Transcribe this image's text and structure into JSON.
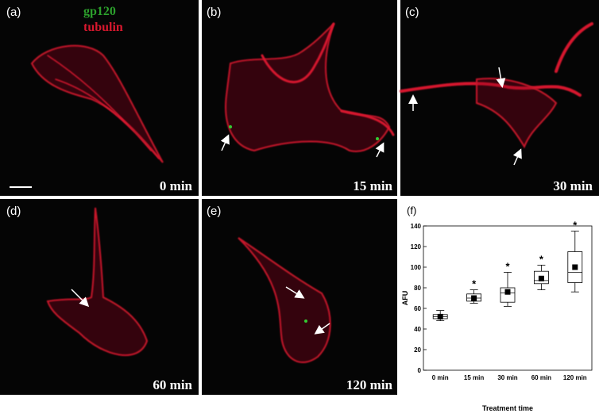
{
  "panels": [
    {
      "label": "(a)",
      "time": "0 min"
    },
    {
      "label": "(b)",
      "time": "15 min"
    },
    {
      "label": "(c)",
      "time": "30 min"
    },
    {
      "label": "(d)",
      "time": "60 min"
    },
    {
      "label": "(e)",
      "time": "120 min"
    }
  ],
  "legend": {
    "green": "gp120",
    "red": "tubulin"
  },
  "chart_data": {
    "type": "box",
    "panel_label": "(f)",
    "x_label": "Treatment time",
    "y_label": "AFU",
    "categories": [
      "0 min",
      "15 min",
      "30 min",
      "60 min",
      "120 min"
    ],
    "boxes": [
      {
        "min": 48,
        "q1": 50,
        "median": 52,
        "q3": 54,
        "max": 58,
        "mean": 52
      },
      {
        "min": 65,
        "q1": 67,
        "median": 70,
        "q3": 74,
        "max": 78,
        "mean": 70
      },
      {
        "min": 62,
        "q1": 66,
        "median": 75,
        "q3": 80,
        "max": 95,
        "mean": 76
      },
      {
        "min": 78,
        "q1": 84,
        "median": 87,
        "q3": 96,
        "max": 102,
        "mean": 89
      },
      {
        "min": 76,
        "q1": 85,
        "median": 95,
        "q3": 115,
        "max": 135,
        "mean": 100
      }
    ],
    "significance": [
      null,
      "*",
      "*",
      "*",
      "*"
    ],
    "ylim": [
      0,
      140
    ],
    "yticks": [
      0,
      20,
      40,
      60,
      80,
      100,
      120,
      140
    ]
  }
}
